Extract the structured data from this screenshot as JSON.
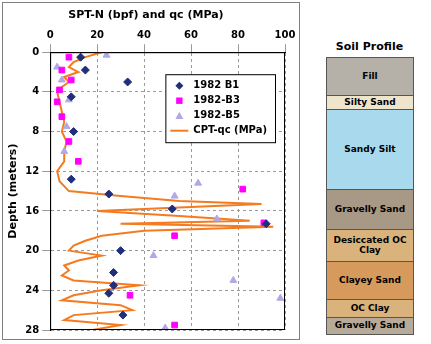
{
  "chart_data": {
    "type": "scatter",
    "title": "SPT-N (bpf) and qc (MPa)",
    "y_label": "Depth (meters)",
    "xlim": [
      0,
      100
    ],
    "xticks": [
      0,
      20,
      40,
      60,
      80,
      100
    ],
    "ylim": [
      0,
      28
    ],
    "yticks": [
      0,
      4,
      8,
      12,
      16,
      20,
      24,
      28
    ],
    "grid": true,
    "legend": "upper right",
    "series": [
      {
        "name": "1982 B1",
        "color": "#1f2f7a",
        "marker": "diamond",
        "x": [
          13,
          15,
          33,
          9,
          10,
          9,
          25,
          52,
          92,
          30,
          27,
          27,
          25,
          31
        ],
        "y": [
          0.5,
          1.8,
          3.0,
          4.5,
          8,
          12.8,
          14.3,
          15.8,
          17.3,
          20.0,
          22.2,
          23.5,
          24.3,
          26.5
        ]
      },
      {
        "name": "1982-B3",
        "color": "#ff00ff",
        "marker": "square",
        "x": [
          8,
          5,
          9,
          4,
          3,
          5,
          8,
          12,
          82,
          91,
          53,
          34,
          53
        ],
        "y": [
          0.5,
          1.8,
          2.8,
          3.8,
          5,
          6.5,
          9,
          11,
          13.8,
          17.2,
          18.5,
          24.5,
          27.5
        ]
      },
      {
        "name": "1982-B5",
        "color": "#b4a7e6",
        "marker": "triangle",
        "x": [
          24,
          3,
          5,
          8,
          7,
          6,
          63,
          53,
          71,
          44,
          78,
          98,
          49
        ],
        "y": [
          0.3,
          1.5,
          2.8,
          4.8,
          7.5,
          10,
          13.2,
          14.5,
          16.8,
          20.5,
          23,
          24.8,
          27.8
        ]
      },
      {
        "name": "CPT-qc (MPa)",
        "color": "#f47b20",
        "type": "line",
        "line_style": "solid",
        "x": [
          22,
          15,
          10,
          8,
          12,
          6,
          8,
          5,
          3,
          4,
          5,
          6,
          5,
          7,
          6,
          6,
          3,
          4,
          8,
          30,
          55,
          90,
          60,
          20,
          55,
          85,
          30,
          95,
          40,
          22,
          15,
          10,
          8,
          22,
          12,
          6,
          8,
          5,
          10,
          38,
          22,
          10,
          5,
          30,
          35,
          10,
          6,
          30,
          18
        ],
        "y": [
          0,
          0.5,
          1,
          1.5,
          2,
          2.5,
          3,
          3.5,
          4,
          5,
          6,
          7,
          8,
          9,
          10,
          11,
          12,
          13,
          14,
          14.5,
          15,
          15.3,
          15.6,
          16,
          16.5,
          17,
          17.3,
          17.6,
          18,
          18.5,
          19,
          19.5,
          20,
          20.5,
          21,
          21.5,
          22,
          22.5,
          23,
          23.5,
          24,
          24.5,
          25,
          25.5,
          26,
          26.5,
          27,
          27.5,
          28
        ]
      }
    ]
  },
  "soil_profile": {
    "title": "Soil Profile",
    "layers": [
      "Fill",
      "Silty Sand",
      "Sandy Silt",
      "Gravelly Sand",
      "Desiccated OC Clay",
      "Clayey Sand",
      "OC Clay",
      "Gravelly Sand"
    ]
  }
}
